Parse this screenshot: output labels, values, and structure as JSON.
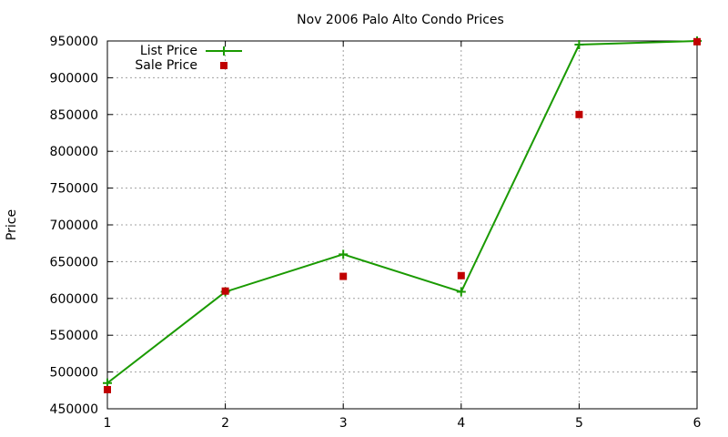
{
  "chart_data": {
    "type": "line",
    "title": "Nov 2006 Palo Alto Condo Prices",
    "xlabel": "",
    "ylabel": "Price",
    "x": [
      1,
      2,
      3,
      4,
      5,
      6
    ],
    "xlim": [
      1,
      6
    ],
    "ylim": [
      450000,
      950000
    ],
    "xticks": [
      1,
      2,
      3,
      4,
      5,
      6
    ],
    "yticks": [
      450000,
      500000,
      550000,
      600000,
      650000,
      700000,
      750000,
      800000,
      850000,
      900000,
      950000
    ],
    "grid": true,
    "legend_position": "top-left",
    "series": [
      {
        "name": "List Price",
        "style": "lines+points",
        "marker": "plus",
        "color": "#1a9a00",
        "values": [
          485000,
          609000,
          660000,
          609000,
          945000,
          950000
        ]
      },
      {
        "name": "Sale Price",
        "style": "points",
        "marker": "square",
        "color": "#c00000",
        "values": [
          476000,
          610000,
          630000,
          631000,
          850000,
          949000
        ]
      }
    ]
  }
}
